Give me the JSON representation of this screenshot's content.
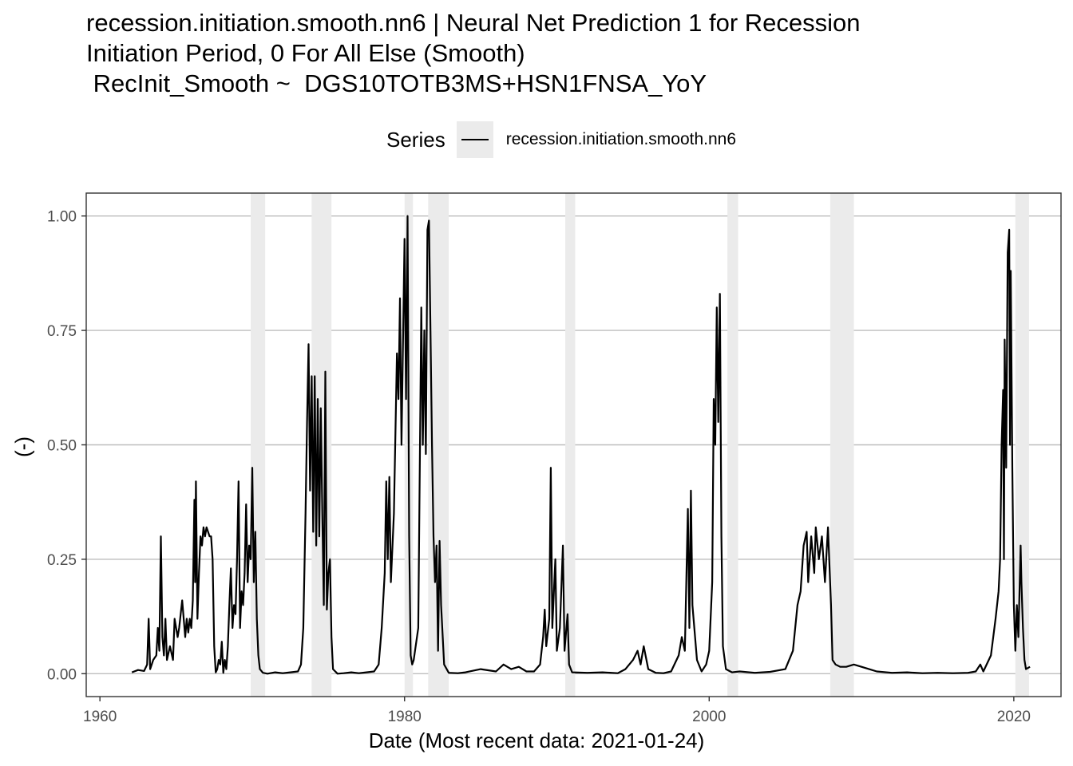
{
  "chart_data": {
    "type": "line",
    "title_lines": [
      "recession.initiation.smooth.nn6 | Neural Net Prediction 1 for Recession",
      "Initiation Period, 0 For All Else (Smooth)",
      " RecInit_Smooth ~  DGS10TOTB3MS+HSN1FNSA_YoY"
    ],
    "legend_title": "Series",
    "series": [
      {
        "name": "recession.initiation.smooth.nn6",
        "color": "#000000",
        "points": [
          [
            1962.1,
            0.003
          ],
          [
            1962.5,
            0.008
          ],
          [
            1962.9,
            0.006
          ],
          [
            1963.1,
            0.02
          ],
          [
            1963.2,
            0.12
          ],
          [
            1963.3,
            0.01
          ],
          [
            1963.5,
            0.03
          ],
          [
            1963.7,
            0.04
          ],
          [
            1963.8,
            0.1
          ],
          [
            1963.9,
            0.05
          ],
          [
            1964.0,
            0.3
          ],
          [
            1964.1,
            0.08
          ],
          [
            1964.2,
            0.04
          ],
          [
            1964.3,
            0.12
          ],
          [
            1964.4,
            0.03
          ],
          [
            1964.6,
            0.06
          ],
          [
            1964.8,
            0.03
          ],
          [
            1964.9,
            0.12
          ],
          [
            1965.1,
            0.08
          ],
          [
            1965.2,
            0.1
          ],
          [
            1965.4,
            0.16
          ],
          [
            1965.5,
            0.12
          ],
          [
            1965.6,
            0.08
          ],
          [
            1965.7,
            0.12
          ],
          [
            1965.8,
            0.09
          ],
          [
            1965.9,
            0.12
          ],
          [
            1966.0,
            0.1
          ],
          [
            1966.1,
            0.16
          ],
          [
            1966.2,
            0.38
          ],
          [
            1966.25,
            0.2
          ],
          [
            1966.3,
            0.42
          ],
          [
            1966.4,
            0.12
          ],
          [
            1966.5,
            0.22
          ],
          [
            1966.6,
            0.3
          ],
          [
            1966.7,
            0.28
          ],
          [
            1966.8,
            0.32
          ],
          [
            1966.9,
            0.3
          ],
          [
            1967.0,
            0.32
          ],
          [
            1967.1,
            0.31
          ],
          [
            1967.2,
            0.3
          ],
          [
            1967.3,
            0.3
          ],
          [
            1967.4,
            0.25
          ],
          [
            1967.5,
            0.06
          ],
          [
            1967.6,
            0.003
          ],
          [
            1967.7,
            0.01
          ],
          [
            1967.8,
            0.03
          ],
          [
            1967.9,
            0.02
          ],
          [
            1968.0,
            0.07
          ],
          [
            1968.1,
            0.002
          ],
          [
            1968.2,
            0.03
          ],
          [
            1968.3,
            0.01
          ],
          [
            1968.4,
            0.06
          ],
          [
            1968.5,
            0.15
          ],
          [
            1968.6,
            0.23
          ],
          [
            1968.7,
            0.1
          ],
          [
            1968.8,
            0.15
          ],
          [
            1968.9,
            0.13
          ],
          [
            1969.0,
            0.25
          ],
          [
            1969.1,
            0.42
          ],
          [
            1969.2,
            0.1
          ],
          [
            1969.3,
            0.18
          ],
          [
            1969.4,
            0.15
          ],
          [
            1969.5,
            0.22
          ],
          [
            1969.6,
            0.37
          ],
          [
            1969.7,
            0.2
          ],
          [
            1969.8,
            0.28
          ],
          [
            1969.9,
            0.25
          ],
          [
            1970.0,
            0.45
          ],
          [
            1970.1,
            0.2
          ],
          [
            1970.2,
            0.31
          ],
          [
            1970.3,
            0.12
          ],
          [
            1970.4,
            0.04
          ],
          [
            1970.5,
            0.01
          ],
          [
            1970.7,
            0.002
          ],
          [
            1971.0,
            0.0
          ],
          [
            1971.5,
            0.003
          ],
          [
            1972.0,
            0.001
          ],
          [
            1972.5,
            0.003
          ],
          [
            1973.0,
            0.005
          ],
          [
            1973.2,
            0.02
          ],
          [
            1973.35,
            0.1
          ],
          [
            1973.5,
            0.35
          ],
          [
            1973.6,
            0.55
          ],
          [
            1973.7,
            0.72
          ],
          [
            1973.8,
            0.4
          ],
          [
            1973.9,
            0.65
          ],
          [
            1974.0,
            0.31
          ],
          [
            1974.1,
            0.65
          ],
          [
            1974.2,
            0.28
          ],
          [
            1974.3,
            0.6
          ],
          [
            1974.4,
            0.3
          ],
          [
            1974.5,
            0.58
          ],
          [
            1974.6,
            0.35
          ],
          [
            1974.7,
            0.15
          ],
          [
            1974.8,
            0.66
          ],
          [
            1974.9,
            0.14
          ],
          [
            1975.0,
            0.22
          ],
          [
            1975.1,
            0.25
          ],
          [
            1975.2,
            0.08
          ],
          [
            1975.3,
            0.01
          ],
          [
            1975.6,
            0.0
          ],
          [
            1976.0,
            0.001
          ],
          [
            1976.5,
            0.003
          ],
          [
            1977.0,
            0.001
          ],
          [
            1977.5,
            0.003
          ],
          [
            1978.0,
            0.005
          ],
          [
            1978.3,
            0.02
          ],
          [
            1978.5,
            0.1
          ],
          [
            1978.7,
            0.22
          ],
          [
            1978.8,
            0.42
          ],
          [
            1978.9,
            0.25
          ],
          [
            1979.0,
            0.43
          ],
          [
            1979.1,
            0.2
          ],
          [
            1979.3,
            0.35
          ],
          [
            1979.5,
            0.7
          ],
          [
            1979.6,
            0.6
          ],
          [
            1979.7,
            0.82
          ],
          [
            1979.8,
            0.5
          ],
          [
            1980.0,
            0.95
          ],
          [
            1980.1,
            0.6
          ],
          [
            1980.2,
            1.0
          ],
          [
            1980.3,
            0.3
          ],
          [
            1980.4,
            0.04
          ],
          [
            1980.5,
            0.02
          ],
          [
            1980.6,
            0.03
          ],
          [
            1980.9,
            0.1
          ],
          [
            1981.0,
            0.45
          ],
          [
            1981.1,
            0.8
          ],
          [
            1981.2,
            0.5
          ],
          [
            1981.3,
            0.75
          ],
          [
            1981.4,
            0.48
          ],
          [
            1981.5,
            0.97
          ],
          [
            1981.6,
            0.99
          ],
          [
            1981.7,
            0.75
          ],
          [
            1981.8,
            0.5
          ],
          [
            1981.9,
            0.3
          ],
          [
            1982.0,
            0.2
          ],
          [
            1982.1,
            0.28
          ],
          [
            1982.2,
            0.05
          ],
          [
            1982.3,
            0.29
          ],
          [
            1982.4,
            0.15
          ],
          [
            1982.6,
            0.02
          ],
          [
            1982.9,
            0.002
          ],
          [
            1983.5,
            0.001
          ],
          [
            1984.0,
            0.003
          ],
          [
            1985.0,
            0.01
          ],
          [
            1986.0,
            0.005
          ],
          [
            1986.5,
            0.02
          ],
          [
            1987.0,
            0.01
          ],
          [
            1987.5,
            0.015
          ],
          [
            1988.0,
            0.005
          ],
          [
            1988.5,
            0.005
          ],
          [
            1988.9,
            0.02
          ],
          [
            1989.1,
            0.08
          ],
          [
            1989.2,
            0.14
          ],
          [
            1989.3,
            0.06
          ],
          [
            1989.5,
            0.12
          ],
          [
            1989.6,
            0.45
          ],
          [
            1989.7,
            0.1
          ],
          [
            1989.9,
            0.25
          ],
          [
            1990.0,
            0.05
          ],
          [
            1990.2,
            0.1
          ],
          [
            1990.4,
            0.28
          ],
          [
            1990.5,
            0.05
          ],
          [
            1990.7,
            0.13
          ],
          [
            1990.8,
            0.02
          ],
          [
            1991.0,
            0.003
          ],
          [
            1992.0,
            0.002
          ],
          [
            1993.0,
            0.003
          ],
          [
            1994.0,
            0.001
          ],
          [
            1994.5,
            0.01
          ],
          [
            1995.0,
            0.03
          ],
          [
            1995.3,
            0.05
          ],
          [
            1995.5,
            0.02
          ],
          [
            1995.7,
            0.06
          ],
          [
            1996.0,
            0.01
          ],
          [
            1996.5,
            0.002
          ],
          [
            1997.0,
            0.001
          ],
          [
            1997.5,
            0.005
          ],
          [
            1998.0,
            0.04
          ],
          [
            1998.2,
            0.08
          ],
          [
            1998.4,
            0.05
          ],
          [
            1998.6,
            0.36
          ],
          [
            1998.7,
            0.1
          ],
          [
            1998.8,
            0.4
          ],
          [
            1998.9,
            0.15
          ],
          [
            1999.2,
            0.03
          ],
          [
            1999.5,
            0.005
          ],
          [
            1999.8,
            0.02
          ],
          [
            2000.0,
            0.05
          ],
          [
            2000.2,
            0.2
          ],
          [
            2000.3,
            0.6
          ],
          [
            2000.4,
            0.5
          ],
          [
            2000.5,
            0.8
          ],
          [
            2000.6,
            0.55
          ],
          [
            2000.7,
            0.83
          ],
          [
            2000.8,
            0.3
          ],
          [
            2000.9,
            0.06
          ],
          [
            2001.1,
            0.01
          ],
          [
            2001.5,
            0.003
          ],
          [
            2002.0,
            0.005
          ],
          [
            2003.0,
            0.002
          ],
          [
            2004.0,
            0.004
          ],
          [
            2005.0,
            0.01
          ],
          [
            2005.5,
            0.05
          ],
          [
            2005.8,
            0.15
          ],
          [
            2006.0,
            0.18
          ],
          [
            2006.2,
            0.28
          ],
          [
            2006.4,
            0.31
          ],
          [
            2006.5,
            0.2
          ],
          [
            2006.7,
            0.3
          ],
          [
            2006.9,
            0.22
          ],
          [
            2007.0,
            0.32
          ],
          [
            2007.2,
            0.25
          ],
          [
            2007.4,
            0.3
          ],
          [
            2007.6,
            0.2
          ],
          [
            2007.8,
            0.32
          ],
          [
            2008.0,
            0.15
          ],
          [
            2008.1,
            0.03
          ],
          [
            2008.3,
            0.02
          ],
          [
            2008.6,
            0.015
          ],
          [
            2009.0,
            0.015
          ],
          [
            2009.5,
            0.02
          ],
          [
            2010.0,
            0.015
          ],
          [
            2010.5,
            0.01
          ],
          [
            2011.0,
            0.005
          ],
          [
            2012.0,
            0.002
          ],
          [
            2013.0,
            0.003
          ],
          [
            2014.0,
            0.001
          ],
          [
            2015.0,
            0.002
          ],
          [
            2016.0,
            0.001
          ],
          [
            2017.0,
            0.002
          ],
          [
            2017.5,
            0.005
          ],
          [
            2017.8,
            0.02
          ],
          [
            2018.0,
            0.005
          ],
          [
            2018.5,
            0.04
          ],
          [
            2018.8,
            0.12
          ],
          [
            2019.0,
            0.18
          ],
          [
            2019.1,
            0.25
          ],
          [
            2019.2,
            0.5
          ],
          [
            2019.3,
            0.62
          ],
          [
            2019.35,
            0.25
          ],
          [
            2019.4,
            0.73
          ],
          [
            2019.5,
            0.45
          ],
          [
            2019.6,
            0.92
          ],
          [
            2019.7,
            0.97
          ],
          [
            2019.75,
            0.5
          ],
          [
            2019.8,
            0.88
          ],
          [
            2019.9,
            0.45
          ],
          [
            2020.0,
            0.15
          ],
          [
            2020.1,
            0.05
          ],
          [
            2020.2,
            0.15
          ],
          [
            2020.3,
            0.08
          ],
          [
            2020.45,
            0.28
          ],
          [
            2020.5,
            0.2
          ],
          [
            2020.6,
            0.1
          ],
          [
            2020.7,
            0.03
          ],
          [
            2020.8,
            0.01
          ],
          [
            2021.06,
            0.015
          ]
        ]
      }
    ],
    "recession_shading": [
      [
        1969.9,
        1970.85
      ],
      [
        1973.9,
        1975.2
      ],
      [
        1980.0,
        1980.55
      ],
      [
        1981.55,
        1982.9
      ],
      [
        1990.55,
        1991.2
      ],
      [
        2001.2,
        2001.9
      ],
      [
        2007.95,
        2009.5
      ],
      [
        2020.1,
        2021.0
      ]
    ],
    "xlabel": "Date (Most recent data: 2021-01-24)",
    "ylabel": "(-)",
    "xlim": [
      1959.1,
      2023.1
    ],
    "ylim": [
      -0.05,
      1.05
    ],
    "xticks": [
      1960,
      1980,
      2000,
      2020
    ],
    "xtick_labels": [
      "1960",
      "1980",
      "2000",
      "2020"
    ],
    "yticks": [
      0,
      0.25,
      0.5,
      0.75,
      1.0
    ],
    "ytick_labels": [
      "0.00",
      "0.25",
      "0.50",
      "0.75",
      "1.00"
    ],
    "grid": true,
    "legend_position": "top"
  }
}
